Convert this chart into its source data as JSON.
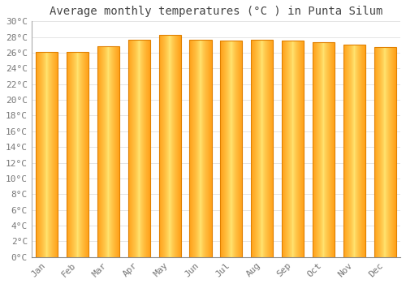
{
  "title": "Average monthly temperatures (°C ) in Punta Silum",
  "months": [
    "Jan",
    "Feb",
    "Mar",
    "Apr",
    "May",
    "Jun",
    "Jul",
    "Aug",
    "Sep",
    "Oct",
    "Nov",
    "Dec"
  ],
  "values": [
    26.1,
    26.1,
    26.8,
    27.7,
    28.3,
    27.7,
    27.5,
    27.7,
    27.5,
    27.3,
    27.0,
    26.7
  ],
  "bar_color_center": "#FFE080",
  "bar_color_edge": "#FFA020",
  "ylim": [
    0,
    30
  ],
  "ytick_step": 2,
  "background_color": "#FFFFFF",
  "grid_color": "#E0E0E0",
  "title_fontsize": 10,
  "tick_fontsize": 8,
  "bar_width": 0.72
}
